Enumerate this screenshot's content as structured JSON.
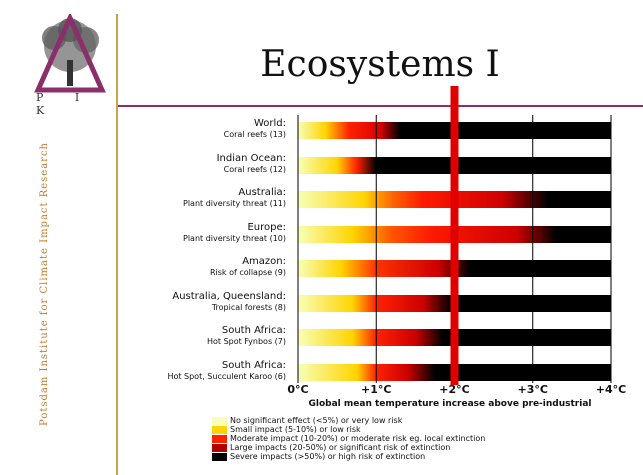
{
  "slide": {
    "title": "Ecosystems I",
    "side_text": "Potsdam Institute for Climate Impact Research",
    "logo_text": "P I K"
  },
  "chart_data": {
    "type": "heatmap",
    "title": "Ecosystems I",
    "xlabel": "Global mean temperature increase above pre-industrial",
    "x_ticks": [
      "0°C",
      "+1°C",
      "+2°C",
      "+3°C",
      "+4°C"
    ],
    "xlim": [
      0,
      4
    ],
    "highlight_x": 2,
    "rows": [
      {
        "region": "World:",
        "detail": "Coral reefs (13)",
        "stops": [
          [
            0.0,
            "#f7ffb8"
          ],
          [
            0.35,
            "#ffd400"
          ],
          [
            0.65,
            "#ff2200"
          ],
          [
            1.05,
            "#d80000"
          ],
          [
            1.3,
            "#000000"
          ],
          [
            4.0,
            "#000000"
          ]
        ]
      },
      {
        "region": "Indian Ocean:",
        "detail": "Coral reefs (12)",
        "stops": [
          [
            0.0,
            "#f7ffb8"
          ],
          [
            0.5,
            "#ffd400"
          ],
          [
            0.75,
            "#ff2200"
          ],
          [
            1.0,
            "#000000"
          ],
          [
            4.0,
            "#000000"
          ]
        ]
      },
      {
        "region": "Australia:",
        "detail": "Plant diversity threat (11)",
        "stops": [
          [
            0.0,
            "#f7ffb8"
          ],
          [
            0.85,
            "#ffd400"
          ],
          [
            1.2,
            "#ff6600"
          ],
          [
            1.6,
            "#ff1a00"
          ],
          [
            2.6,
            "#d00000"
          ],
          [
            3.2,
            "#000000"
          ],
          [
            4.0,
            "#000000"
          ]
        ]
      },
      {
        "region": "Europe:",
        "detail": "Plant diversity threat (10)",
        "stops": [
          [
            0.0,
            "#f7ffb8"
          ],
          [
            0.7,
            "#ffd400"
          ],
          [
            1.2,
            "#ff5500"
          ],
          [
            1.7,
            "#ff1a00"
          ],
          [
            2.8,
            "#cc0000"
          ],
          [
            3.3,
            "#000000"
          ],
          [
            4.0,
            "#000000"
          ]
        ]
      },
      {
        "region": "Amazon:",
        "detail": "Risk of collapse (9)",
        "stops": [
          [
            0.0,
            "#f7ffb8"
          ],
          [
            0.55,
            "#ffd400"
          ],
          [
            1.0,
            "#ff3300"
          ],
          [
            1.8,
            "#cc0000"
          ],
          [
            2.2,
            "#000000"
          ],
          [
            4.0,
            "#000000"
          ]
        ]
      },
      {
        "region": "Australia, Queensland:",
        "detail": "Tropical forests (8)",
        "stops": [
          [
            0.0,
            "#f7ffb8"
          ],
          [
            0.7,
            "#ffd400"
          ],
          [
            1.0,
            "#ff2200"
          ],
          [
            1.6,
            "#cc0000"
          ],
          [
            1.95,
            "#000000"
          ],
          [
            4.0,
            "#000000"
          ]
        ]
      },
      {
        "region": "South Africa:",
        "detail": "Hot Spot Fynbos (7)",
        "stops": [
          [
            0.0,
            "#f7ffb8"
          ],
          [
            0.7,
            "#ffd400"
          ],
          [
            1.0,
            "#ff2200"
          ],
          [
            1.5,
            "#cc0000"
          ],
          [
            1.85,
            "#000000"
          ],
          [
            4.0,
            "#000000"
          ]
        ]
      },
      {
        "region": "South Africa:",
        "detail": "Hot Spot, Succulent Karoo (6)",
        "stops": [
          [
            0.0,
            "#f7ffb8"
          ],
          [
            0.75,
            "#ffd400"
          ],
          [
            1.0,
            "#ff2200"
          ],
          [
            1.4,
            "#cc0000"
          ],
          [
            1.75,
            "#000000"
          ],
          [
            4.0,
            "#000000"
          ]
        ]
      }
    ],
    "legend": [
      {
        "color": "#f7ffb8",
        "label": "No significant effect (<5%) or very low risk"
      },
      {
        "color": "#ffd400",
        "label": "Small impact (5-10%) or low risk"
      },
      {
        "color": "#ff2200",
        "label": "Moderate impact (10-20%) or moderate risk eg. local extinction"
      },
      {
        "color": "#b00000",
        "label": "Large impacts (20-50%) or significant risk of extinction"
      },
      {
        "color": "#000000",
        "label": "Severe impacts (>50%) or high risk of extinction"
      }
    ],
    "grid": true
  }
}
